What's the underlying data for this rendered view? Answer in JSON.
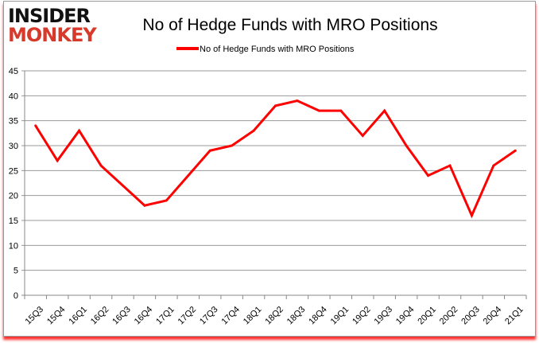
{
  "logo": {
    "line1": "INSIDER",
    "line2": "MONKEY"
  },
  "chart_data": {
    "type": "line",
    "title": "No of Hedge Funds with MRO Positions",
    "xlabel": "",
    "ylabel": "",
    "legend_position": "top",
    "grid": true,
    "ylim": [
      0,
      45
    ],
    "yticks": [
      0,
      5,
      10,
      15,
      20,
      25,
      30,
      35,
      40,
      45
    ],
    "categories": [
      "15Q3",
      "15Q4",
      "16Q1",
      "16Q2",
      "16Q3",
      "16Q4",
      "17Q1",
      "17Q2",
      "17Q3",
      "17Q4",
      "18Q1",
      "18Q2",
      "18Q3",
      "18Q4",
      "19Q1",
      "19Q2",
      "19Q3",
      "19Q4",
      "20Q1",
      "20Q2",
      "20Q3",
      "20Q4",
      "21Q1"
    ],
    "series": [
      {
        "name": "No of Hedge Funds with MRO Positions",
        "color": "#ff0000",
        "values": [
          34,
          27,
          33,
          26,
          22,
          18,
          19,
          24,
          29,
          30,
          33,
          38,
          39,
          37,
          37,
          32,
          37,
          30,
          24,
          26,
          16,
          26,
          29
        ]
      }
    ]
  }
}
